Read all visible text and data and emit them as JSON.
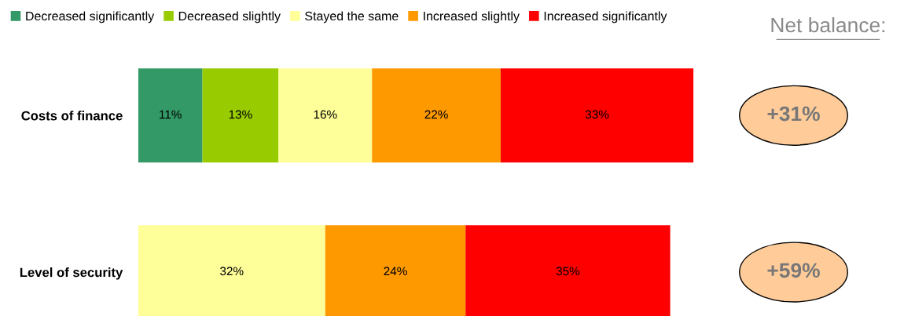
{
  "chart_data": {
    "type": "bar",
    "orientation": "horizontal",
    "stacked": true,
    "categories": [
      "Costs of finance",
      "Level of security"
    ],
    "series": [
      {
        "name": "Decreased significantly",
        "color": "#339966",
        "values": [
          11,
          null
        ],
        "value_labels": [
          "11%",
          null
        ]
      },
      {
        "name": "Decreased slightly",
        "color": "#99cc00",
        "values": [
          13,
          null
        ],
        "value_labels": [
          "13%",
          null
        ]
      },
      {
        "name": "Stayed the same",
        "color": "#ffff99",
        "values": [
          16,
          32
        ],
        "value_labels": [
          "16%",
          "32%"
        ]
      },
      {
        "name": "Increased slightly",
        "color": "#ff9900",
        "values": [
          22,
          24
        ],
        "value_labels": [
          "22%",
          "24%"
        ]
      },
      {
        "name": "Increased significantly",
        "color": "#ff0000",
        "values": [
          33,
          35
        ],
        "value_labels": [
          "33%",
          "35%"
        ]
      }
    ],
    "legend": "top left",
    "grid": false,
    "annotations": [
      "Net balance:",
      "+31%",
      "+59%"
    ]
  }
}
